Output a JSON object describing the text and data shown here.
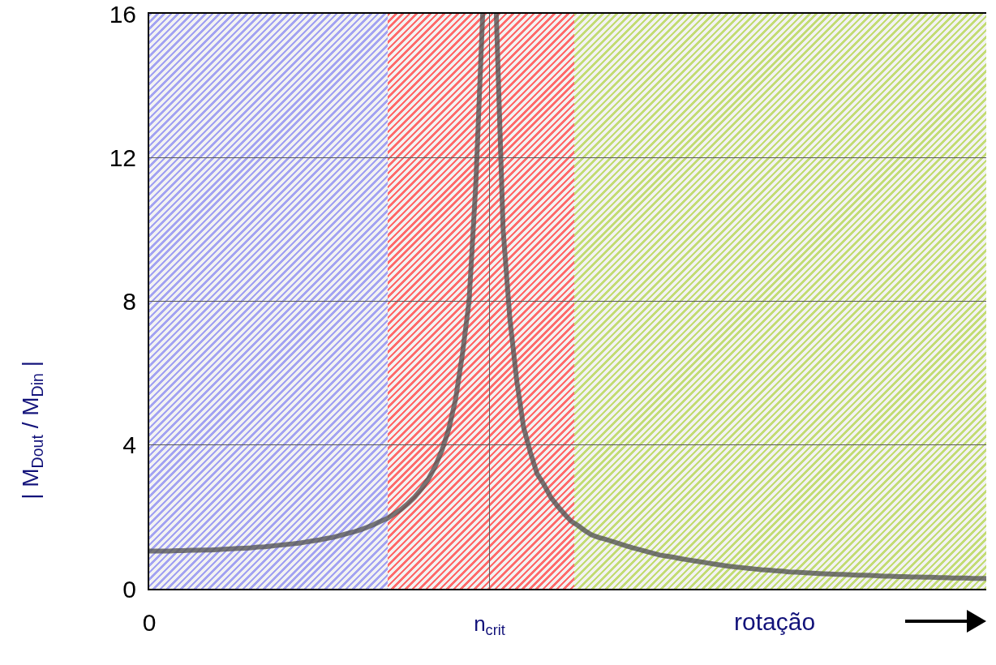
{
  "chart_data": {
    "type": "line",
    "ylabel": "| M$_{Dout}$ / M$_{Din}$ |",
    "xlabel": "rotação",
    "categories": [
      "0",
      null,
      null,
      null,
      null,
      null,
      null,
      null,
      null,
      null,
      null,
      null,
      null,
      null,
      null,
      null,
      null,
      null,
      null,
      null,
      null,
      null,
      null,
      null,
      null,
      null,
      null,
      null,
      null,
      null,
      null,
      null,
      null,
      null,
      null,
      null,
      null,
      null,
      null,
      null,
      null,
      null,
      null,
      null,
      null,
      null,
      null,
      null,
      null,
      null,
      "n$_{crit}$",
      null,
      null,
      null,
      null,
      null,
      null,
      null,
      null,
      null,
      null,
      null,
      null,
      null,
      null,
      null,
      null,
      null,
      null,
      null,
      null,
      null,
      null,
      null,
      null,
      null,
      null,
      null,
      null,
      null,
      null,
      null,
      null,
      null,
      null,
      null,
      null,
      null,
      null,
      null,
      null,
      null,
      null,
      null,
      null,
      null,
      null,
      null,
      null,
      null,
      null,
      null,
      null,
      null,
      null,
      null,
      null,
      null,
      null,
      null,
      null,
      null,
      null,
      null,
      null,
      null,
      null,
      null,
      null,
      null,
      null,
      null,
      null,
      null
    ],
    "series": [
      {
        "color": "#555555",
        "values": [
          1.05,
          1.05,
          1.05,
          1.05,
          1.06,
          1.06,
          1.07,
          1.07,
          1.08,
          1.08,
          1.09,
          1.1,
          1.11,
          1.12,
          1.13,
          1.14,
          1.16,
          1.17,
          1.19,
          1.21,
          1.23,
          1.25,
          1.27,
          1.3,
          1.33,
          1.36,
          1.4,
          1.43,
          1.48,
          1.53,
          1.58,
          1.64,
          1.71,
          1.79,
          1.88,
          1.96,
          2.08,
          2.21,
          2.37,
          2.55,
          2.78,
          3.05,
          3.4,
          3.85,
          4.43,
          5.26,
          6.5,
          8,
          11.3,
          16,
          null,
          16,
          10,
          7.5,
          5.8,
          4.5,
          3.8,
          3.2,
          2.9,
          2.55,
          2.3,
          2.08,
          1.88,
          1.76,
          1.62,
          1.5,
          1.43,
          1.38,
          1.32,
          1.26,
          1.2,
          1.14,
          1.09,
          1.04,
          0.99,
          0.94,
          0.91,
          0.88,
          0.84,
          0.81,
          0.78,
          0.75,
          0.72,
          0.69,
          0.66,
          0.63,
          0.61,
          0.59,
          0.57,
          0.55,
          0.53,
          0.52,
          0.5,
          0.49,
          0.47,
          0.46,
          0.45,
          0.44,
          0.43,
          0.42,
          0.41,
          0.4,
          0.4,
          0.39,
          0.38,
          0.38,
          0.37,
          0.36,
          0.35,
          0.35,
          0.34,
          0.34,
          0.33,
          0.33,
          0.32,
          0.32,
          0.31,
          0.31,
          0.3,
          0.3,
          0.3,
          0.29,
          0.29,
          0.29
        ]
      }
    ],
    "ylim": [
      0,
      16
    ],
    "yticks": [
      0,
      4,
      8,
      12,
      16
    ],
    "grid": true
  }
}
